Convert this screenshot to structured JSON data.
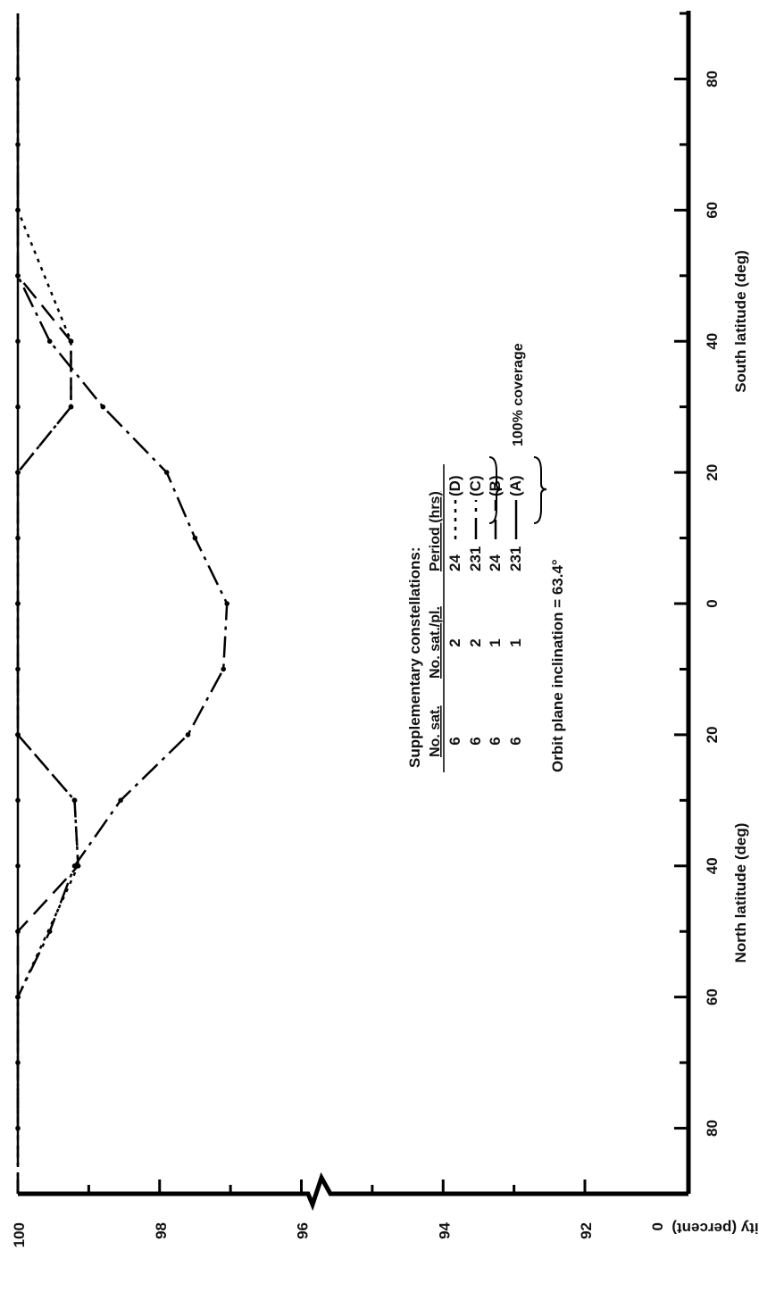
{
  "chart_data": {
    "type": "line",
    "orientation": "rotated 90 degrees clockwise",
    "y_axis": {
      "label": "Probability (percent)",
      "ticks": [
        "100",
        "98",
        "96",
        "94",
        "92",
        "0"
      ],
      "tick_values": [
        100,
        98,
        96,
        94,
        92
      ],
      "ylim": [
        91,
        100
      ],
      "axis_break": true
    },
    "x_axis": {
      "north_label": "North latitude (deg)",
      "south_label": "South latitude (deg)",
      "north_ticks": [
        "80",
        "60",
        "40",
        "20"
      ],
      "center_tick": "0",
      "south_ticks": [
        "20",
        "40",
        "60",
        "80"
      ],
      "xlim": [
        -90,
        90
      ],
      "note": "negative = north latitude, positive = south latitude"
    },
    "legend": {
      "title": "Supplementary constellations:",
      "headers": [
        "No. sat.",
        "No. sat./pl.",
        "Period (hrs)"
      ],
      "rows": [
        {
          "no_sat": "6",
          "no_sat_pl": "2",
          "period": "24",
          "id": "(D)"
        },
        {
          "no_sat": "6",
          "no_sat_pl": "2",
          "period": "231",
          "id": "(C)"
        },
        {
          "no_sat": "6",
          "no_sat_pl": "1",
          "period": "24",
          "id": "(B)"
        },
        {
          "no_sat": "6",
          "no_sat_pl": "1",
          "period": "231",
          "id": "(A)"
        }
      ],
      "coverage_note": "100% coverage",
      "inclination_note": "Orbit plane inclination = 63.4°"
    },
    "series": [
      {
        "id": "A",
        "name": "(A)",
        "style": "solid",
        "points": [
          [
            -80,
            100
          ],
          [
            -70,
            100
          ],
          [
            -60,
            100
          ],
          [
            -50,
            100
          ],
          [
            -40,
            100
          ],
          [
            -30,
            100
          ],
          [
            -20,
            100
          ],
          [
            -10,
            100
          ],
          [
            0,
            100
          ],
          [
            10,
            100
          ],
          [
            20,
            100
          ],
          [
            30,
            100
          ],
          [
            40,
            100
          ],
          [
            50,
            100
          ],
          [
            60,
            100
          ],
          [
            70,
            100
          ],
          [
            80,
            100
          ],
          [
            90,
            100
          ]
        ]
      },
      {
        "id": "B",
        "name": "(B)",
        "style": "dashed",
        "points": [
          [
            -90,
            100
          ],
          [
            -60,
            100
          ],
          [
            -50,
            100
          ],
          [
            -40,
            99.15
          ],
          [
            -30,
            99.2
          ],
          [
            -20,
            100
          ],
          [
            0,
            100
          ],
          [
            20,
            100
          ],
          [
            30,
            99.25
          ],
          [
            40,
            99.25
          ],
          [
            50,
            100
          ],
          [
            90,
            100
          ]
        ]
      },
      {
        "id": "C",
        "name": "(C)",
        "style": "dash-dot",
        "points": [
          [
            -90,
            100
          ],
          [
            -60,
            100
          ],
          [
            -50,
            99.55
          ],
          [
            -40,
            99.2
          ],
          [
            -30,
            98.55
          ],
          [
            -20,
            97.6
          ],
          [
            -10,
            97.1
          ],
          [
            0,
            97.05
          ],
          [
            10,
            97.5
          ],
          [
            20,
            97.9
          ],
          [
            30,
            98.8
          ],
          [
            40,
            99.55
          ],
          [
            50,
            100
          ],
          [
            90,
            100
          ]
        ]
      },
      {
        "id": "D",
        "name": "(D)",
        "style": "dotted",
        "points": [
          [
            -90,
            100
          ],
          [
            -60,
            100
          ],
          [
            -40,
            99.15
          ],
          [
            -30,
            99.2
          ],
          [
            -20,
            100
          ],
          [
            0,
            100
          ],
          [
            20,
            100
          ],
          [
            30,
            99.25
          ],
          [
            40,
            99.25
          ],
          [
            60,
            100
          ],
          [
            90,
            100
          ]
        ]
      }
    ]
  }
}
